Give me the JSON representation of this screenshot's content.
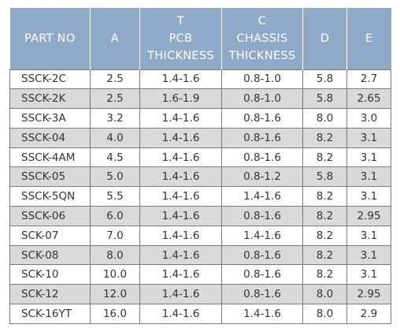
{
  "table": {
    "headers": {
      "part": "PART NO",
      "a": "A",
      "t_line1": "T",
      "t_line2": "PCB",
      "t_line3": "THICKNESS",
      "c_line1": "C",
      "c_line2": "CHASSIS",
      "c_line3": "THICKNESS",
      "d": "D",
      "e": "E"
    },
    "rows": [
      {
        "part": "SSCK-2C",
        "a": "2.5",
        "t": "1.4-1.6",
        "c": "0.8-1.0",
        "d": "5.8",
        "e": "2.7"
      },
      {
        "part": "SSCK-2K",
        "a": "2.5",
        "t": "1.6-1.9",
        "c": "0.8-1.0",
        "d": "5.8",
        "e": "2.65"
      },
      {
        "part": "SSCK-3A",
        "a": "3.2",
        "t": "1.4-1.6",
        "c": "0.8-1.6",
        "d": "8.0",
        "e": "3.0"
      },
      {
        "part": "SSCK-04",
        "a": "4.0",
        "t": "1.4-1.6",
        "c": "0.8-1.6",
        "d": "8.2",
        "e": "3.1"
      },
      {
        "part": "SSCK-4AM",
        "a": "4.5",
        "t": "1.4-1.6",
        "c": "0.8-1.6",
        "d": "8.2",
        "e": "3.1"
      },
      {
        "part": "SSCK-05",
        "a": "5.0",
        "t": "1.4-1.6",
        "c": "0.8-1.2",
        "d": "5.8",
        "e": "3.1"
      },
      {
        "part": "SSCK-5QN",
        "a": "5.5",
        "t": "1.4-1.6",
        "c": "1.4-1.6",
        "d": "8.2",
        "e": "3.1"
      },
      {
        "part": "SSCK-06",
        "a": "6.0",
        "t": "1.4-1.6",
        "c": "0.8-1.6",
        "d": "8.2",
        "e": "2.95"
      },
      {
        "part": "SCK-07",
        "a": "7.0",
        "t": "1.4-1.6",
        "c": "1.4-1.6",
        "d": "8.2",
        "e": "3.1"
      },
      {
        "part": "SCK-08",
        "a": "8.0",
        "t": "1.4-1.6",
        "c": "0.8-1.6",
        "d": "8.2",
        "e": "3.1"
      },
      {
        "part": "SCK-10",
        "a": "10.0",
        "t": "1.4-1.6",
        "c": "0.8-1.6",
        "d": "8.2",
        "e": "3.1"
      },
      {
        "part": "SCK-12",
        "a": "12.0",
        "t": "1.4-1.6",
        "c": "0.8-1.6",
        "d": "8.0",
        "e": "2.95"
      },
      {
        "part": "SCK-16YT",
        "a": "16.0",
        "t": "1.4-1.6",
        "c": "1.4-1.6",
        "d": "8.0",
        "e": "2.9"
      }
    ],
    "colors": {
      "header_bg": "#8fa9c9",
      "header_text": "#ffffff",
      "shaded_row_bg": "#d9d9d9",
      "border": "#7a7a7a"
    }
  }
}
